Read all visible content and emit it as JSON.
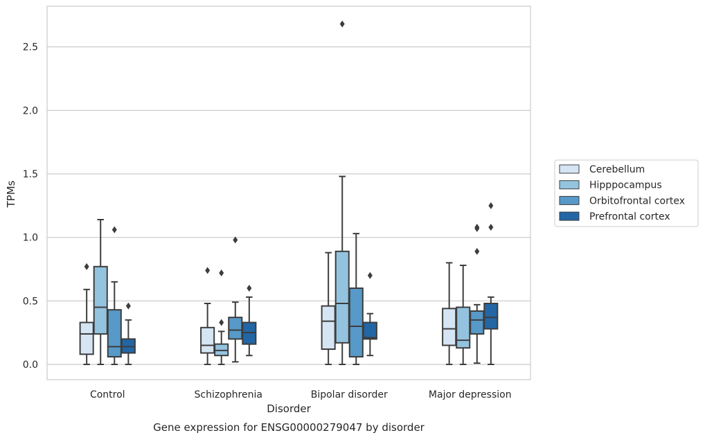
{
  "chart_data": {
    "type": "box",
    "title": "",
    "caption": "Gene expression for ENSG00000279047 by disorder",
    "xlabel": "Disorder",
    "ylabel": "TPMs",
    "categories": [
      "Control",
      "Schizophrenia",
      "Bipolar disorder",
      "Major depression"
    ],
    "ylim": [
      -0.12,
      2.82
    ],
    "yticks": [
      0.0,
      0.5,
      1.0,
      1.5,
      2.0,
      2.5
    ],
    "ytick_labels": [
      "0.0",
      "0.5",
      "1.0",
      "1.5",
      "2.0",
      "2.5"
    ],
    "grid": true,
    "legend_position": "right",
    "series": [
      {
        "name": "Cerebellum",
        "color": "#d6e5f4",
        "boxes": [
          {
            "min": 0.0,
            "q1": 0.08,
            "median": 0.24,
            "q3": 0.33,
            "max": 0.59,
            "outliers": [
              0.77
            ]
          },
          {
            "min": 0.0,
            "q1": 0.09,
            "median": 0.15,
            "q3": 0.29,
            "max": 0.48,
            "outliers": [
              0.74
            ]
          },
          {
            "min": 0.0,
            "q1": 0.12,
            "median": 0.34,
            "q3": 0.46,
            "max": 0.88,
            "outliers": []
          },
          {
            "min": 0.0,
            "q1": 0.15,
            "median": 0.28,
            "q3": 0.44,
            "max": 0.8,
            "outliers": []
          }
        ]
      },
      {
        "name": "Hipppocampus",
        "color": "#94c3df",
        "boxes": [
          {
            "min": 0.0,
            "q1": 0.24,
            "median": 0.45,
            "q3": 0.77,
            "max": 1.14,
            "outliers": []
          },
          {
            "min": 0.0,
            "q1": 0.07,
            "median": 0.11,
            "q3": 0.16,
            "max": 0.26,
            "outliers": [
              0.33,
              0.72
            ]
          },
          {
            "min": 0.0,
            "q1": 0.17,
            "median": 0.48,
            "q3": 0.89,
            "max": 1.48,
            "outliers": [
              2.68
            ]
          },
          {
            "min": 0.0,
            "q1": 0.13,
            "median": 0.19,
            "q3": 0.45,
            "max": 0.78,
            "outliers": []
          }
        ]
      },
      {
        "name": "Orbitofrontal cortex",
        "color": "#5799c8",
        "boxes": [
          {
            "min": 0.0,
            "q1": 0.06,
            "median": 0.14,
            "q3": 0.43,
            "max": 0.65,
            "outliers": [
              1.06
            ]
          },
          {
            "min": 0.02,
            "q1": 0.2,
            "median": 0.27,
            "q3": 0.37,
            "max": 0.49,
            "outliers": [
              0.98
            ]
          },
          {
            "min": 0.0,
            "q1": 0.06,
            "median": 0.3,
            "q3": 0.6,
            "max": 1.03,
            "outliers": []
          },
          {
            "min": 0.01,
            "q1": 0.24,
            "median": 0.35,
            "q3": 0.42,
            "max": 0.47,
            "outliers": [
              0.89,
              1.07,
              1.08
            ]
          }
        ]
      },
      {
        "name": "Prefrontal cortex",
        "color": "#2366a5",
        "boxes": [
          {
            "min": 0.0,
            "q1": 0.09,
            "median": 0.14,
            "q3": 0.2,
            "max": 0.35,
            "outliers": [
              0.46
            ]
          },
          {
            "min": 0.07,
            "q1": 0.16,
            "median": 0.25,
            "q3": 0.33,
            "max": 0.53,
            "outliers": [
              0.6
            ]
          },
          {
            "min": 0.07,
            "q1": 0.2,
            "median": 0.21,
            "q3": 0.33,
            "max": 0.4,
            "outliers": [
              0.7
            ]
          },
          {
            "min": 0.0,
            "q1": 0.28,
            "median": 0.37,
            "q3": 0.48,
            "max": 0.53,
            "outliers": [
              1.08,
              1.25
            ]
          }
        ]
      }
    ]
  }
}
